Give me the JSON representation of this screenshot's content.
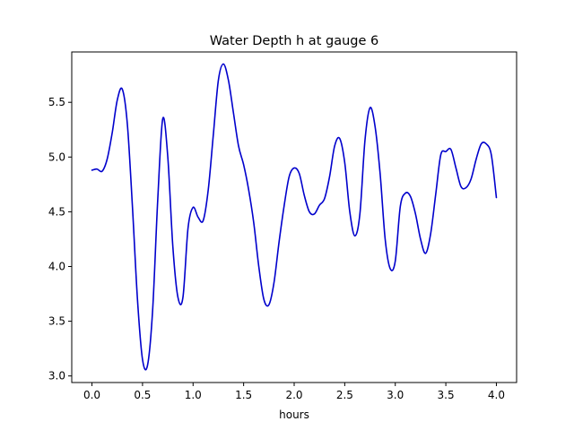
{
  "chart_data": {
    "type": "line",
    "title": "Water Depth h at gauge 6",
    "xlabel": "hours",
    "ylabel": "",
    "xlim": [
      -0.2,
      4.2
    ],
    "ylim": [
      2.94,
      5.96
    ],
    "xticks": [
      0.0,
      0.5,
      1.0,
      1.5,
      2.0,
      2.5,
      3.0,
      3.5,
      4.0
    ],
    "xtick_labels": [
      "0.0",
      "0.5",
      "1.0",
      "1.5",
      "2.0",
      "2.5",
      "3.0",
      "3.5",
      "4.0"
    ],
    "yticks": [
      3.0,
      3.5,
      4.0,
      4.5,
      5.0,
      5.5
    ],
    "ytick_labels": [
      "3.0",
      "3.5",
      "4.0",
      "4.5",
      "5.0",
      "5.5"
    ],
    "grid": false,
    "legend": "none",
    "series": [
      {
        "color": "#0000cc",
        "x": [
          0.0,
          0.05,
          0.1,
          0.15,
          0.2,
          0.25,
          0.3,
          0.35,
          0.4,
          0.45,
          0.5,
          0.55,
          0.6,
          0.65,
          0.7,
          0.75,
          0.8,
          0.85,
          0.9,
          0.95,
          1.0,
          1.05,
          1.1,
          1.15,
          1.2,
          1.25,
          1.3,
          1.35,
          1.4,
          1.45,
          1.5,
          1.55,
          1.6,
          1.65,
          1.7,
          1.75,
          1.8,
          1.85,
          1.9,
          1.95,
          2.0,
          2.05,
          2.1,
          2.15,
          2.2,
          2.25,
          2.3,
          2.35,
          2.4,
          2.45,
          2.5,
          2.55,
          2.6,
          2.65,
          2.7,
          2.75,
          2.8,
          2.85,
          2.9,
          2.95,
          3.0,
          3.05,
          3.1,
          3.15,
          3.2,
          3.25,
          3.3,
          3.35,
          3.4,
          3.45,
          3.5,
          3.55,
          3.6,
          3.65,
          3.7,
          3.75,
          3.8,
          3.85,
          3.9,
          3.95,
          4.0
        ],
        "y": [
          4.88,
          4.89,
          4.87,
          4.98,
          5.22,
          5.52,
          5.62,
          5.3,
          4.55,
          3.7,
          3.15,
          3.1,
          3.6,
          4.6,
          5.35,
          5.0,
          4.18,
          3.72,
          3.72,
          4.35,
          4.54,
          4.45,
          4.42,
          4.7,
          5.2,
          5.7,
          5.85,
          5.7,
          5.4,
          5.1,
          4.93,
          4.7,
          4.4,
          4.0,
          3.7,
          3.65,
          3.85,
          4.22,
          4.55,
          4.82,
          4.9,
          4.85,
          4.65,
          4.5,
          4.48,
          4.56,
          4.62,
          4.82,
          5.1,
          5.17,
          4.95,
          4.5,
          4.28,
          4.48,
          5.15,
          5.45,
          5.28,
          4.85,
          4.25,
          3.98,
          4.05,
          4.55,
          4.67,
          4.64,
          4.48,
          4.25,
          4.12,
          4.3,
          4.66,
          5.02,
          5.05,
          5.07,
          4.9,
          4.73,
          4.72,
          4.8,
          4.98,
          5.12,
          5.12,
          5.02,
          4.63
        ]
      }
    ]
  }
}
